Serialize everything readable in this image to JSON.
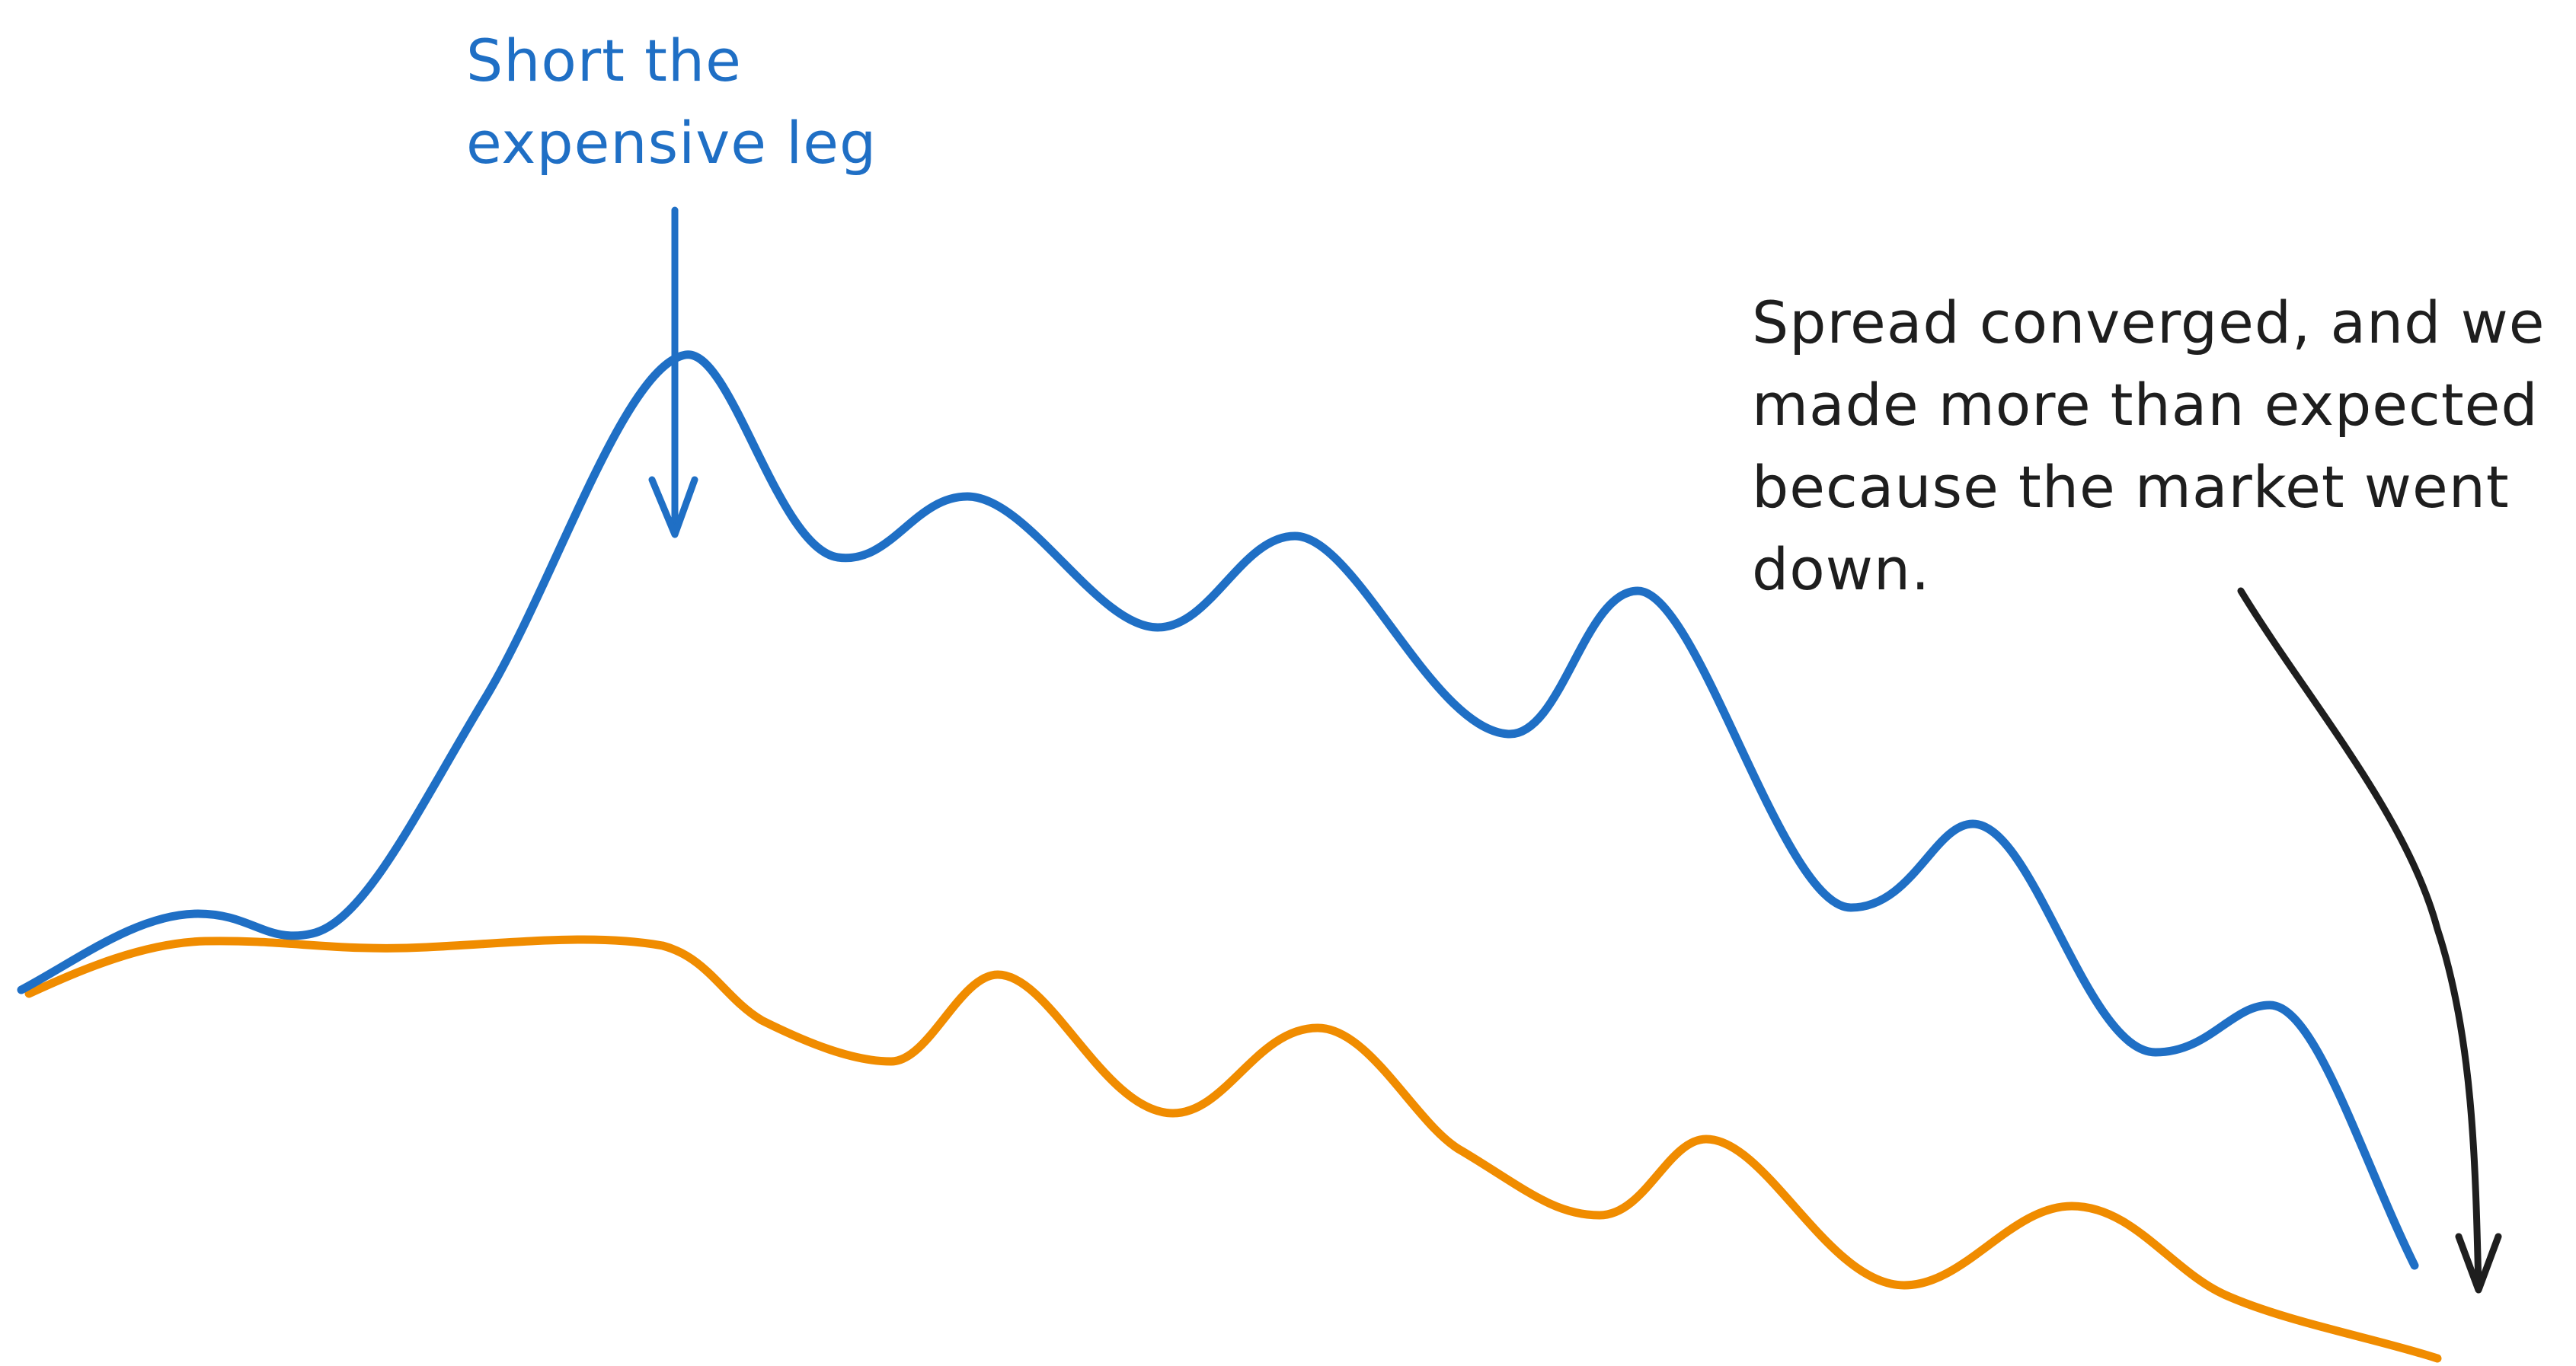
{
  "annotations": {
    "short_leg": {
      "lines": [
        "Short the",
        "expensive leg"
      ],
      "color": "#1f6fc5"
    },
    "spread_converged": {
      "lines": [
        "Spread converged, and we",
        "made more than expected",
        "because the market went",
        "down."
      ],
      "color": "#1e1e1e"
    }
  },
  "series_colors": {
    "expensive_leg": "#1f6fc5",
    "cheap_leg": "#f08c00"
  }
}
